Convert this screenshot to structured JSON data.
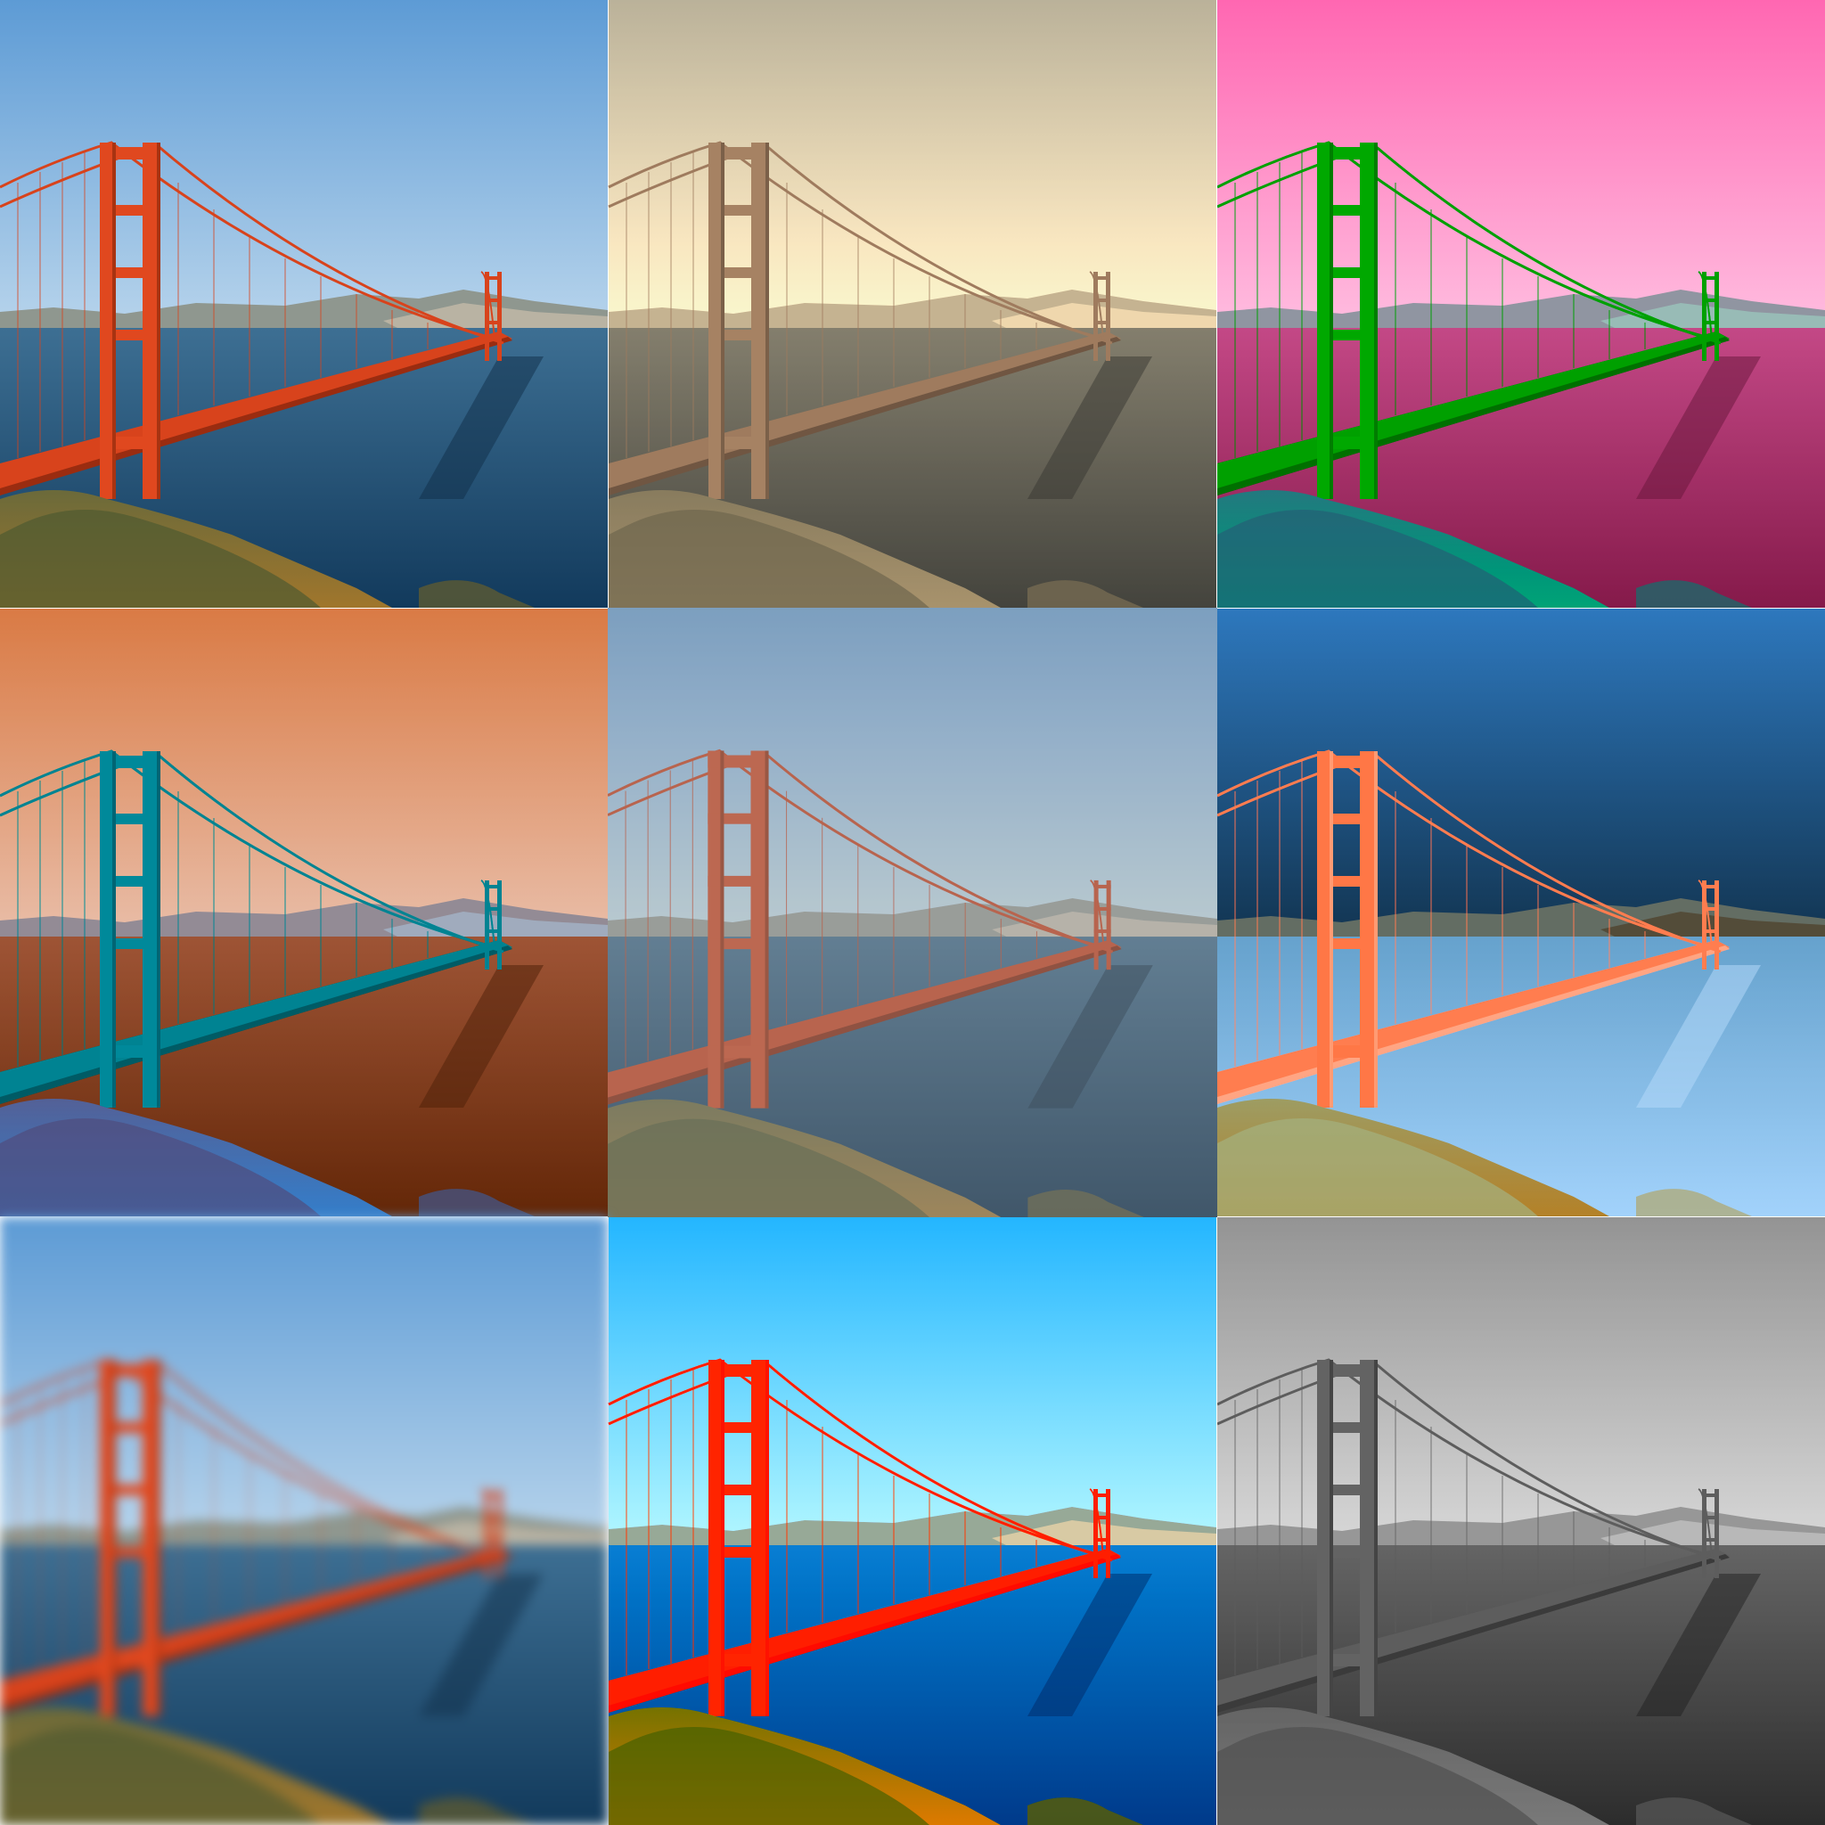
{
  "collage": {
    "tiles": [
      {
        "name": "tile-original",
        "filter": "original"
      },
      {
        "name": "tile-sepia",
        "filter": "sepia"
      },
      {
        "name": "tile-green-purple",
        "filter": "hue-shift-green"
      },
      {
        "name": "tile-warm-teal",
        "filter": "hue-shift-warm"
      },
      {
        "name": "tile-faded",
        "filter": "faded"
      },
      {
        "name": "tile-inverted",
        "filter": "inverted"
      },
      {
        "name": "tile-blurred",
        "filter": "blur"
      },
      {
        "name": "tile-vivid",
        "filter": "vivid"
      },
      {
        "name": "tile-grayscale",
        "filter": "grayscale"
      }
    ],
    "colors": {
      "sky_top": "#6fa8dc",
      "sky_bottom": "#dcebf6",
      "water": "#1f4f73",
      "bridge": "#e0481f",
      "hills": "#8a8f86",
      "foreground": "#6e5a2e"
    }
  }
}
